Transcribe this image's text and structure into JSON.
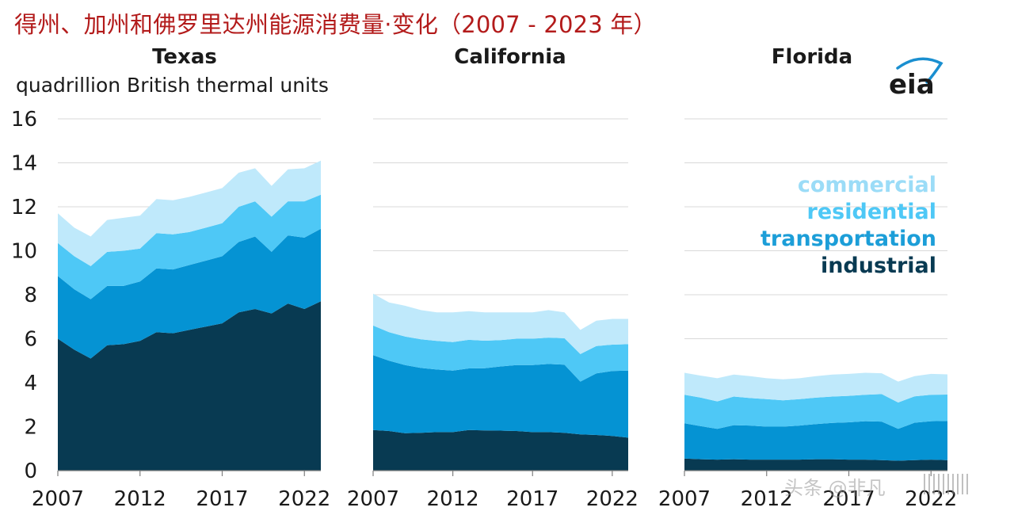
{
  "title": "得州、加州和佛罗里达州能源消费量·变化（2007 - 2023 年）",
  "logo_text": "eia",
  "watermark": "头条 @非凡",
  "colors": {
    "industrial": "#083a52",
    "transportation": "#0593d3",
    "residential": "#4ec8f6",
    "commercial": "#bfe9fb",
    "grid": "#d9d9d9",
    "title": "#b31b1b",
    "text": "#1a1a1a"
  },
  "legend": [
    {
      "label": "commercial",
      "color": "#9bdcf7"
    },
    {
      "label": "residential",
      "color": "#4ec8f6"
    },
    {
      "label": "transportation",
      "color": "#1c9ed8"
    },
    {
      "label": "industrial",
      "color": "#083a52"
    }
  ],
  "chart_data": [
    {
      "type": "area",
      "stacked": true,
      "title": "Texas",
      "ylabel": "quadrillion British thermal units",
      "ylim": [
        0,
        16
      ],
      "yticks": [
        0,
        2,
        4,
        6,
        8,
        10,
        12,
        14,
        16
      ],
      "xticks": [
        2007,
        2012,
        2017,
        2022
      ],
      "x": [
        2007,
        2008,
        2009,
        2010,
        2011,
        2012,
        2013,
        2014,
        2015,
        2016,
        2017,
        2018,
        2019,
        2020,
        2021,
        2022,
        2023
      ],
      "series": [
        {
          "name": "industrial",
          "values": [
            6.0,
            5.5,
            5.1,
            5.7,
            5.75,
            5.9,
            6.3,
            6.25,
            6.4,
            6.55,
            6.7,
            7.2,
            7.35,
            7.15,
            7.6,
            7.35,
            7.7
          ]
        },
        {
          "name": "transportation",
          "values": [
            2.85,
            2.75,
            2.7,
            2.7,
            2.65,
            2.7,
            2.9,
            2.9,
            2.95,
            3.0,
            3.05,
            3.2,
            3.3,
            2.8,
            3.1,
            3.25,
            3.3
          ]
        },
        {
          "name": "residential",
          "values": [
            1.5,
            1.5,
            1.5,
            1.55,
            1.6,
            1.5,
            1.6,
            1.6,
            1.5,
            1.5,
            1.5,
            1.6,
            1.6,
            1.6,
            1.55,
            1.65,
            1.55
          ]
        },
        {
          "name": "commercial",
          "values": [
            1.35,
            1.3,
            1.35,
            1.45,
            1.5,
            1.5,
            1.55,
            1.55,
            1.6,
            1.6,
            1.6,
            1.55,
            1.5,
            1.4,
            1.45,
            1.5,
            1.55
          ]
        }
      ]
    },
    {
      "type": "area",
      "stacked": true,
      "title": "California",
      "ylim": [
        0,
        16
      ],
      "xticks": [
        2007,
        2012,
        2017,
        2022
      ],
      "x": [
        2007,
        2008,
        2009,
        2010,
        2011,
        2012,
        2013,
        2014,
        2015,
        2016,
        2017,
        2018,
        2019,
        2020,
        2021,
        2022,
        2023
      ],
      "series": [
        {
          "name": "industrial",
          "values": [
            1.85,
            1.8,
            1.7,
            1.72,
            1.75,
            1.75,
            1.85,
            1.83,
            1.82,
            1.8,
            1.75,
            1.75,
            1.72,
            1.65,
            1.62,
            1.58,
            1.5
          ]
        },
        {
          "name": "transportation",
          "values": [
            3.4,
            3.2,
            3.1,
            2.95,
            2.85,
            2.8,
            2.8,
            2.83,
            2.92,
            3.0,
            3.05,
            3.1,
            3.1,
            2.4,
            2.8,
            2.95,
            3.05
          ]
        },
        {
          "name": "residential",
          "values": [
            1.35,
            1.3,
            1.3,
            1.3,
            1.3,
            1.3,
            1.3,
            1.25,
            1.2,
            1.2,
            1.2,
            1.2,
            1.2,
            1.25,
            1.25,
            1.2,
            1.2
          ]
        },
        {
          "name": "commercial",
          "values": [
            1.45,
            1.35,
            1.4,
            1.33,
            1.3,
            1.35,
            1.3,
            1.29,
            1.26,
            1.2,
            1.2,
            1.25,
            1.18,
            1.1,
            1.15,
            1.17,
            1.15
          ]
        }
      ]
    },
    {
      "type": "area",
      "stacked": true,
      "title": "Florida",
      "ylim": [
        0,
        16
      ],
      "xticks": [
        2007,
        2012,
        2017,
        2022
      ],
      "x": [
        2007,
        2008,
        2009,
        2010,
        2011,
        2012,
        2013,
        2014,
        2015,
        2016,
        2017,
        2018,
        2019,
        2020,
        2021,
        2022,
        2023
      ],
      "series": [
        {
          "name": "industrial",
          "values": [
            0.55,
            0.52,
            0.5,
            0.52,
            0.5,
            0.5,
            0.5,
            0.5,
            0.52,
            0.52,
            0.5,
            0.5,
            0.48,
            0.45,
            0.48,
            0.5,
            0.48
          ]
        },
        {
          "name": "transportation",
          "values": [
            1.6,
            1.5,
            1.4,
            1.55,
            1.55,
            1.5,
            1.5,
            1.55,
            1.6,
            1.65,
            1.7,
            1.75,
            1.75,
            1.45,
            1.7,
            1.75,
            1.78
          ]
        },
        {
          "name": "residential",
          "values": [
            1.3,
            1.3,
            1.25,
            1.3,
            1.25,
            1.25,
            1.2,
            1.2,
            1.2,
            1.2,
            1.2,
            1.2,
            1.25,
            1.2,
            1.2,
            1.2,
            1.2
          ]
        },
        {
          "name": "commercial",
          "values": [
            1.0,
            1.0,
            1.05,
            1.0,
            1.0,
            0.95,
            0.95,
            0.95,
            0.98,
            1.0,
            1.0,
            1.0,
            0.95,
            0.95,
            0.92,
            0.95,
            0.92
          ]
        }
      ]
    }
  ]
}
